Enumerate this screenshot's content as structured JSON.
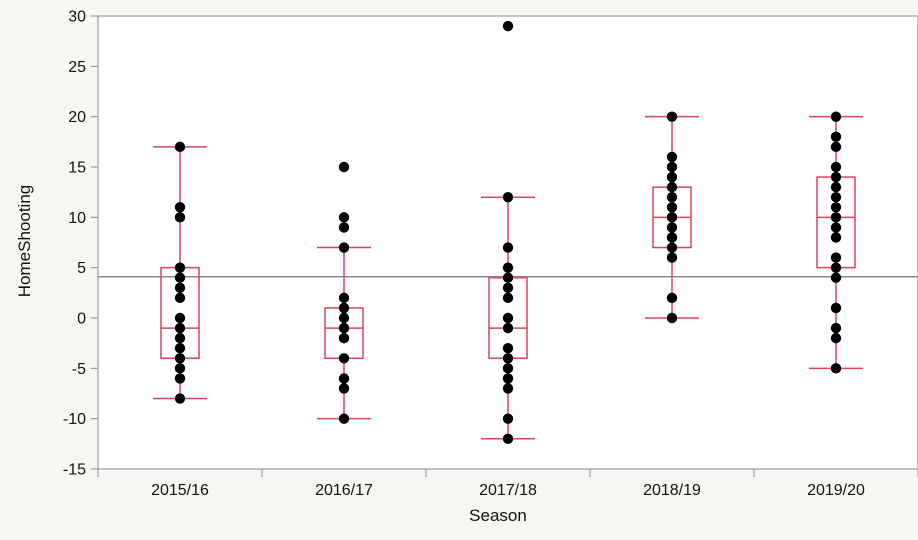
{
  "chart_data": {
    "type": "box",
    "xlabel": "Season",
    "ylabel": "HomeShooting",
    "ylim": [
      -15,
      30
    ],
    "yticks": [
      -15,
      -10,
      -5,
      0,
      5,
      10,
      15,
      20,
      25,
      30
    ],
    "categories": [
      "2015/16",
      "2016/17",
      "2017/18",
      "2018/19",
      "2019/20"
    ],
    "reference_line": 4.1,
    "grid": false,
    "colors": {
      "box": "#d9455f",
      "point": "#000000",
      "reference_line": "#8a8a8a",
      "axis": "#888888"
    },
    "boxes": [
      {
        "category": "2015/16",
        "min": -8,
        "q1": -4,
        "median": -1,
        "q3": 5,
        "max": 17,
        "points": [
          17,
          11,
          10,
          5,
          4,
          3,
          2,
          0,
          -1,
          -2,
          -3,
          -4,
          -5,
          -6,
          -8
        ]
      },
      {
        "category": "2016/17",
        "min": -10,
        "q1": -4,
        "median": -1,
        "q3": 1,
        "max": 7,
        "points": [
          15,
          10,
          9,
          7,
          2,
          1,
          0,
          -1,
          -2,
          -4,
          -6,
          -7,
          -10
        ]
      },
      {
        "category": "2017/18",
        "min": -12,
        "q1": -4,
        "median": -1,
        "q3": 4,
        "max": 12,
        "points": [
          29,
          12,
          7,
          5,
          4,
          3,
          2,
          0,
          -1,
          -3,
          -4,
          -5,
          -6,
          -7,
          -10,
          -12
        ]
      },
      {
        "category": "2018/19",
        "min": 0,
        "q1": 7,
        "median": 10,
        "q3": 13,
        "max": 20,
        "points": [
          20,
          16,
          15,
          14,
          13,
          12,
          11,
          10,
          9,
          8,
          7,
          6,
          2,
          0
        ]
      },
      {
        "category": "2019/20",
        "min": -5,
        "q1": 5,
        "median": 10,
        "q3": 14,
        "max": 20,
        "points": [
          20,
          18,
          17,
          15,
          14,
          13,
          12,
          11,
          10,
          9,
          8,
          6,
          5,
          4,
          1,
          -1,
          -2,
          -5
        ]
      }
    ]
  }
}
